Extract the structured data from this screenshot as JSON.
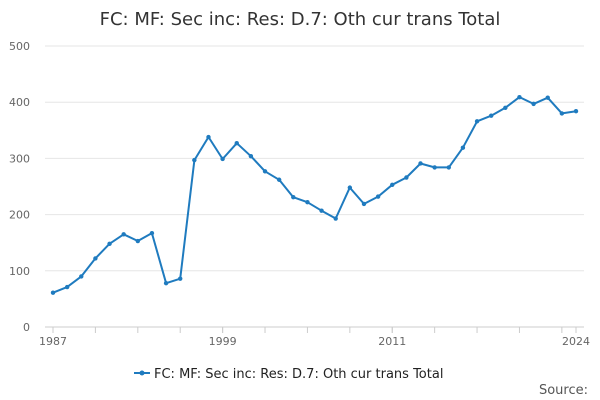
{
  "chart_data": {
    "type": "line",
    "title": "FC: MF: Sec inc: Res: D.7: Oth cur trans Total",
    "xlabel": "",
    "ylabel": "",
    "xlim": [
      1987,
      2024
    ],
    "ylim": [
      0,
      500
    ],
    "x_tick_labels": [
      "1987",
      "1999",
      "2011",
      "2024"
    ],
    "y_tick_labels": [
      "0",
      "100",
      "200",
      "300",
      "400",
      "500"
    ],
    "grid": true,
    "legend_position": "bottom",
    "series": [
      {
        "name": "FC: MF: Sec inc: Res: D.7: Oth cur trans Total",
        "color": "#1f7bbf",
        "x": [
          1987,
          1988,
          1989,
          1990,
          1991,
          1992,
          1993,
          1994,
          1995,
          1996,
          1997,
          1998,
          1999,
          2000,
          2001,
          2002,
          2003,
          2004,
          2005,
          2006,
          2007,
          2008,
          2009,
          2010,
          2011,
          2012,
          2013,
          2014,
          2015,
          2016,
          2017,
          2018,
          2019,
          2020,
          2021,
          2022,
          2023,
          2024
        ],
        "values": [
          61,
          71,
          90,
          122,
          148,
          165,
          153,
          167,
          78,
          86,
          297,
          338,
          299,
          327,
          304,
          277,
          262,
          231,
          222,
          207,
          193,
          248,
          219,
          232,
          253,
          266,
          291,
          284,
          284,
          319,
          366,
          376,
          390,
          409,
          397,
          408,
          380,
          384
        ]
      }
    ]
  },
  "source_label": "Source:"
}
